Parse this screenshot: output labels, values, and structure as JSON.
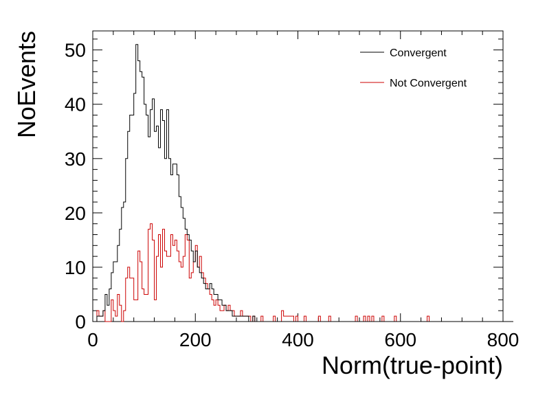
{
  "chart_data": {
    "type": "histogram",
    "title": "",
    "xlabel": "Norm(true-point)",
    "ylabel": "NoEvents",
    "xlim": [
      0,
      800
    ],
    "ylim": [
      0,
      53.5
    ],
    "x_ticks": [
      0,
      200,
      400,
      600,
      800
    ],
    "y_ticks": [
      0,
      10,
      20,
      30,
      40,
      50
    ],
    "bin_width": 4,
    "grid": false,
    "legend_position": "top-right",
    "series": [
      {
        "name": "Convergent",
        "color": "#000000",
        "values": [
          0,
          0,
          1,
          1,
          1,
          2,
          5,
          3,
          6,
          9,
          11,
          11,
          14,
          17,
          21,
          22,
          30,
          35,
          38,
          38,
          42,
          51,
          48,
          46,
          45,
          40,
          38,
          34,
          39,
          41,
          35,
          36,
          32,
          39,
          37,
          30,
          39,
          30,
          27,
          29,
          29,
          27,
          23,
          21,
          19,
          17,
          16,
          15,
          13,
          11,
          13,
          10,
          9,
          8,
          7,
          6,
          6,
          7,
          6,
          5,
          5,
          4,
          4,
          3,
          3,
          2,
          2,
          2,
          1,
          1,
          1,
          1,
          1,
          1,
          1,
          1,
          0,
          0,
          1,
          0,
          0,
          0,
          0,
          0,
          0,
          0,
          0,
          0,
          0,
          0,
          0,
          0,
          0,
          0,
          0,
          0,
          0,
          0,
          0,
          0,
          0,
          0,
          0,
          0,
          0,
          0,
          0,
          0,
          0,
          0,
          0,
          0,
          0,
          0,
          0,
          0,
          0,
          0,
          0,
          0,
          0,
          0,
          0,
          0,
          0,
          0,
          0,
          0,
          0,
          0,
          0,
          0,
          0,
          0,
          0,
          0,
          0,
          0,
          0,
          0,
          0,
          0,
          0,
          0,
          0,
          0,
          0,
          0,
          0,
          0,
          0,
          0,
          0,
          0,
          0,
          0,
          0,
          0,
          0,
          0,
          0,
          0,
          0,
          0,
          0,
          0,
          0,
          0,
          0,
          0,
          0,
          0,
          0,
          0,
          0,
          0,
          0,
          0,
          0,
          0,
          0,
          0,
          0,
          0,
          0,
          0,
          0,
          0,
          0,
          0,
          0,
          0,
          0,
          0,
          0,
          0,
          0,
          0,
          0,
          0,
          0,
          0,
          0,
          0,
          0
        ]
      },
      {
        "name": "Not Convergent",
        "color": "#cc0000",
        "values": [
          0,
          0,
          2,
          1,
          1,
          2,
          0,
          0,
          0,
          4,
          2,
          1,
          5,
          3,
          0,
          2,
          8,
          10,
          8,
          8,
          4,
          4,
          13,
          11,
          6,
          5,
          5,
          17,
          18,
          15,
          4,
          12,
          16,
          10,
          17,
          13,
          12,
          12,
          16,
          14,
          15,
          13,
          11,
          10,
          12,
          16,
          15,
          8,
          9,
          11,
          14,
          10,
          12,
          9,
          8,
          7,
          6,
          5,
          4,
          3,
          4,
          3,
          2,
          2,
          3,
          2,
          3,
          2,
          2,
          1,
          1,
          1,
          2,
          1,
          1,
          1,
          1,
          0,
          1,
          0,
          0,
          0,
          1,
          0,
          0,
          0,
          0,
          0,
          1,
          0,
          0,
          0,
          2,
          1,
          1,
          1,
          1,
          1,
          0,
          1,
          0,
          0,
          0,
          1,
          0,
          0,
          0,
          0,
          0,
          0,
          1,
          0,
          0,
          0,
          0,
          1,
          0,
          0,
          0,
          0,
          0,
          0,
          0,
          0,
          0,
          0,
          0,
          0,
          1,
          0,
          0,
          0,
          1,
          0,
          1,
          0,
          1,
          0,
          0,
          0,
          0,
          1,
          0,
          0,
          0,
          0,
          0,
          1,
          0,
          0,
          0,
          0,
          0,
          0,
          0,
          0,
          0,
          0,
          0,
          0,
          0,
          0,
          0,
          1,
          0,
          0,
          0,
          0,
          0,
          0,
          0,
          0,
          0,
          0,
          0,
          0,
          0,
          0,
          0,
          0,
          0,
          0,
          0,
          0,
          0,
          0,
          0,
          0,
          0,
          0,
          0,
          0,
          0,
          0,
          0,
          0,
          0,
          0,
          0,
          0,
          0,
          0,
          0,
          0,
          0
        ]
      }
    ]
  }
}
